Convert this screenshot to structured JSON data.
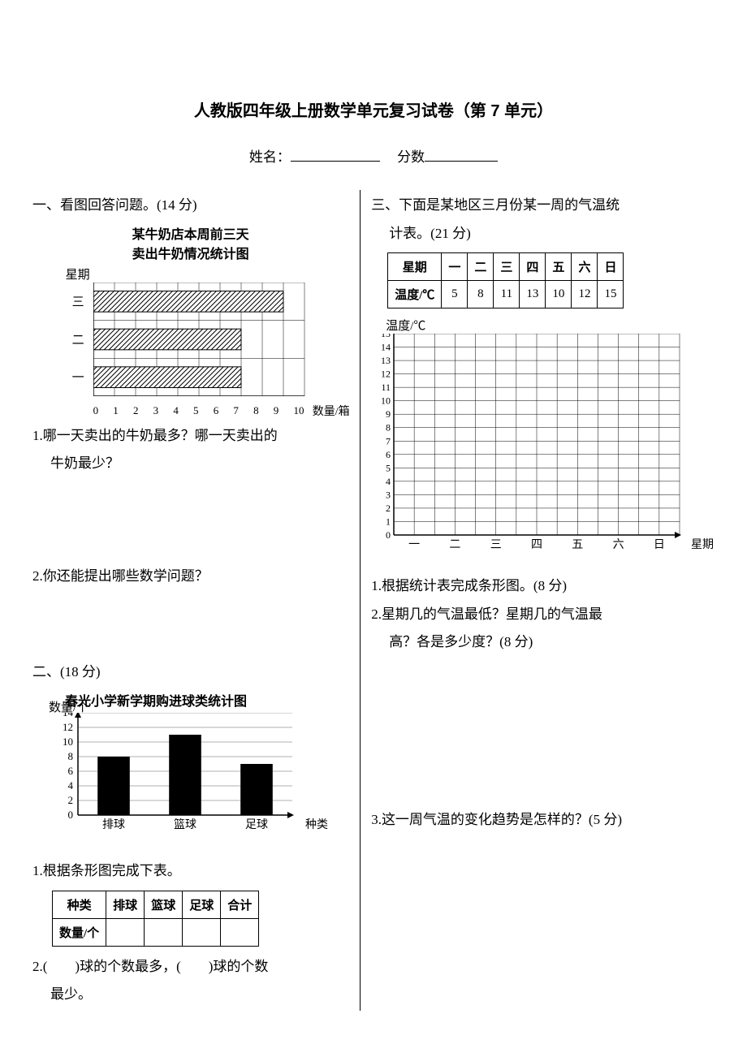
{
  "title": "人教版四年级上册数学单元复习试卷（第 7 单元）",
  "header": {
    "name_label": "姓名：",
    "score_label": "分数"
  },
  "q1": {
    "heading": "一、看图回答问题。(14 分)",
    "chart_title_l1": "某牛奶店本周前三天",
    "chart_title_l2": "卖出牛奶情况统计图",
    "y_axis_label": "星期",
    "x_axis_label": "数量/箱",
    "type": "horizontal-bar",
    "categories": [
      "三",
      "二",
      "一"
    ],
    "values": [
      9,
      7,
      7
    ],
    "xlim": [
      0,
      10
    ],
    "xtick_step": 1,
    "bar_color": "#808080",
    "hatched": true,
    "grid_color": "#000000",
    "sub1": "1.哪一天卖出的牛奶最多？哪一天卖出的",
    "sub1b": "牛奶最少？",
    "sub2": "2.你还能提出哪些数学问题？"
  },
  "q2": {
    "heading": "二、(18 分)",
    "chart_title": "春光小学新学期购进球类统计图",
    "y_axis_label": "数量/个",
    "x_axis_label": "种类",
    "type": "bar",
    "categories": [
      "排球",
      "篮球",
      "足球"
    ],
    "values": [
      8,
      11,
      7
    ],
    "ylim": [
      0,
      14
    ],
    "ytick_step": 2,
    "bar_color": "#000000",
    "grid_color": "#666666",
    "sub1": "1.根据条形图完成下表。",
    "table": {
      "header": [
        "种类",
        "排球",
        "篮球",
        "足球",
        "合计"
      ],
      "row_label": "数量/个",
      "row_values": [
        "",
        "",
        "",
        ""
      ]
    },
    "sub2a": "2.(　　)球的个数最多，(　　)球的个数",
    "sub2b": "最少。"
  },
  "q3": {
    "heading": "三、下面是某地区三月份某一周的气温统",
    "heading_b": "计表。(21 分)",
    "table": {
      "header": [
        "星期",
        "一",
        "二",
        "三",
        "四",
        "五",
        "六",
        "日"
      ],
      "row_label": "温度/℃",
      "row_values": [
        5,
        8,
        11,
        13,
        10,
        12,
        15
      ]
    },
    "chart": {
      "y_axis_label": "温度/℃",
      "x_axis_label": "星期",
      "categories": [
        "一",
        "二",
        "三",
        "四",
        "五",
        "六",
        "日"
      ],
      "ylim": [
        0,
        15
      ],
      "ytick_step": 1,
      "grid_color": "#000000",
      "background": "#ffffff"
    },
    "sub1": "1.根据统计表完成条形图。(8 分)",
    "sub2a": "2.星期几的气温最低？星期几的气温最",
    "sub2b": "高？各是多少度？(8 分)",
    "sub3": "3.这一周气温的变化趋势是怎样的？(5 分)"
  }
}
